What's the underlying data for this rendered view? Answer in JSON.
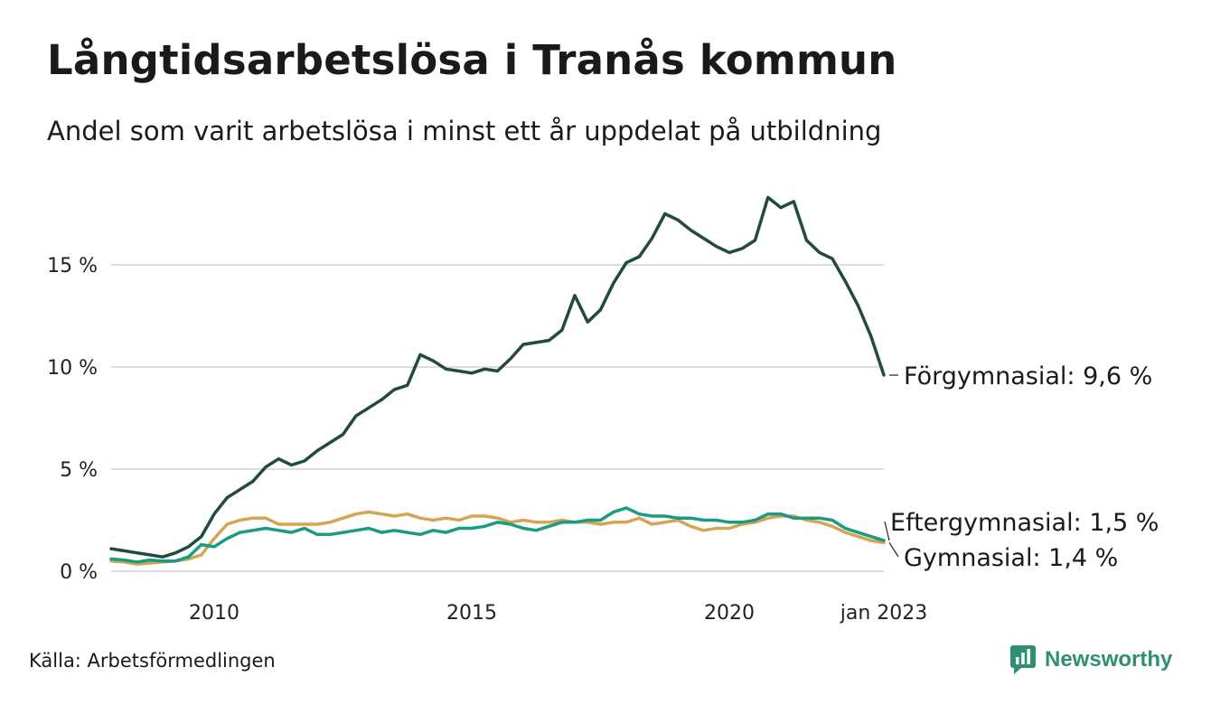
{
  "title": "Långtidsarbetslösa i Tranås kommun",
  "subtitle": "Andel som varit arbetslösa i minst ett år uppdelat på utbildning",
  "source": "Källa: Arbetsförmedlingen",
  "brand": "Newsworthy",
  "colors": {
    "forgymnasial": "#234a40",
    "eftergymnasial": "#1b9a84",
    "gymnasial": "#d4a552",
    "grid": "#dddddd",
    "brand": "#2f8f73"
  },
  "chart_data": {
    "type": "line",
    "title": "Långtidsarbetslösa i Tranås kommun",
    "subtitle": "Andel som varit arbetslösa i minst ett år uppdelat på utbildning",
    "xlabel": "",
    "ylabel": "",
    "x_range": [
      "2008-01",
      "2023-01"
    ],
    "ylim": [
      0,
      18.5
    ],
    "y_ticks": [
      0,
      5,
      10,
      15
    ],
    "y_tick_labels": [
      "0 %",
      "5 %",
      "10 %",
      "15 %"
    ],
    "x_ticks": [
      "2010-01",
      "2015-01",
      "2020-01",
      "2023-01"
    ],
    "x_tick_labels": [
      "2010",
      "2015",
      "2020",
      "jan 2023"
    ],
    "grid": "horizontal",
    "legend": "end-labels",
    "series": [
      {
        "key": "forgymnasial",
        "label": "Förgymnasial: 9,6 %",
        "points": [
          [
            "2008-01",
            1.1
          ],
          [
            "2008-04",
            1.0
          ],
          [
            "2008-07",
            0.9
          ],
          [
            "2008-10",
            0.8
          ],
          [
            "2009-01",
            0.7
          ],
          [
            "2009-04",
            0.9
          ],
          [
            "2009-07",
            1.2
          ],
          [
            "2009-10",
            1.7
          ],
          [
            "2010-01",
            2.8
          ],
          [
            "2010-04",
            3.6
          ],
          [
            "2010-07",
            4.0
          ],
          [
            "2010-10",
            4.4
          ],
          [
            "2011-01",
            5.1
          ],
          [
            "2011-04",
            5.5
          ],
          [
            "2011-07",
            5.2
          ],
          [
            "2011-10",
            5.4
          ],
          [
            "2012-01",
            5.9
          ],
          [
            "2012-04",
            6.3
          ],
          [
            "2012-07",
            6.7
          ],
          [
            "2012-10",
            7.6
          ],
          [
            "2013-01",
            8.0
          ],
          [
            "2013-04",
            8.4
          ],
          [
            "2013-07",
            8.9
          ],
          [
            "2013-10",
            9.1
          ],
          [
            "2014-01",
            10.6
          ],
          [
            "2014-04",
            10.3
          ],
          [
            "2014-07",
            9.9
          ],
          [
            "2014-10",
            9.8
          ],
          [
            "2015-01",
            9.7
          ],
          [
            "2015-04",
            9.9
          ],
          [
            "2015-07",
            9.8
          ],
          [
            "2015-10",
            10.4
          ],
          [
            "2016-01",
            11.1
          ],
          [
            "2016-04",
            11.2
          ],
          [
            "2016-07",
            11.3
          ],
          [
            "2016-10",
            11.8
          ],
          [
            "2017-01",
            13.5
          ],
          [
            "2017-04",
            12.2
          ],
          [
            "2017-07",
            12.8
          ],
          [
            "2017-10",
            14.1
          ],
          [
            "2018-01",
            15.1
          ],
          [
            "2018-04",
            15.4
          ],
          [
            "2018-07",
            16.3
          ],
          [
            "2018-10",
            17.5
          ],
          [
            "2019-01",
            17.2
          ],
          [
            "2019-04",
            16.7
          ],
          [
            "2019-07",
            16.3
          ],
          [
            "2019-10",
            15.9
          ],
          [
            "2020-01",
            15.6
          ],
          [
            "2020-04",
            15.8
          ],
          [
            "2020-07",
            16.2
          ],
          [
            "2020-10",
            18.3
          ],
          [
            "2021-01",
            17.8
          ],
          [
            "2021-04",
            18.1
          ],
          [
            "2021-07",
            16.2
          ],
          [
            "2021-10",
            15.6
          ],
          [
            "2022-01",
            15.3
          ],
          [
            "2022-04",
            14.2
          ],
          [
            "2022-07",
            13.0
          ],
          [
            "2022-10",
            11.5
          ],
          [
            "2023-01",
            9.6
          ]
        ]
      },
      {
        "key": "eftergymnasial",
        "label": "Eftergymnasial: 1,5 %",
        "points": [
          [
            "2008-01",
            0.6
          ],
          [
            "2008-04",
            0.55
          ],
          [
            "2008-07",
            0.45
          ],
          [
            "2008-10",
            0.55
          ],
          [
            "2009-01",
            0.5
          ],
          [
            "2009-04",
            0.5
          ],
          [
            "2009-07",
            0.7
          ],
          [
            "2009-10",
            1.3
          ],
          [
            "2010-01",
            1.2
          ],
          [
            "2010-04",
            1.6
          ],
          [
            "2010-07",
            1.9
          ],
          [
            "2010-10",
            2.0
          ],
          [
            "2011-01",
            2.1
          ],
          [
            "2011-04",
            2.0
          ],
          [
            "2011-07",
            1.9
          ],
          [
            "2011-10",
            2.1
          ],
          [
            "2012-01",
            1.8
          ],
          [
            "2012-04",
            1.8
          ],
          [
            "2012-07",
            1.9
          ],
          [
            "2012-10",
            2.0
          ],
          [
            "2013-01",
            2.1
          ],
          [
            "2013-04",
            1.9
          ],
          [
            "2013-07",
            2.0
          ],
          [
            "2013-10",
            1.9
          ],
          [
            "2014-01",
            1.8
          ],
          [
            "2014-04",
            2.0
          ],
          [
            "2014-07",
            1.9
          ],
          [
            "2014-10",
            2.1
          ],
          [
            "2015-01",
            2.1
          ],
          [
            "2015-04",
            2.2
          ],
          [
            "2015-07",
            2.4
          ],
          [
            "2015-10",
            2.3
          ],
          [
            "2016-01",
            2.1
          ],
          [
            "2016-04",
            2.0
          ],
          [
            "2016-07",
            2.2
          ],
          [
            "2016-10",
            2.4
          ],
          [
            "2017-01",
            2.4
          ],
          [
            "2017-04",
            2.5
          ],
          [
            "2017-07",
            2.5
          ],
          [
            "2017-10",
            2.9
          ],
          [
            "2018-01",
            3.1
          ],
          [
            "2018-04",
            2.8
          ],
          [
            "2018-07",
            2.7
          ],
          [
            "2018-10",
            2.7
          ],
          [
            "2019-01",
            2.6
          ],
          [
            "2019-04",
            2.6
          ],
          [
            "2019-07",
            2.5
          ],
          [
            "2019-10",
            2.5
          ],
          [
            "2020-01",
            2.4
          ],
          [
            "2020-04",
            2.4
          ],
          [
            "2020-07",
            2.5
          ],
          [
            "2020-10",
            2.8
          ],
          [
            "2021-01",
            2.8
          ],
          [
            "2021-04",
            2.6
          ],
          [
            "2021-07",
            2.6
          ],
          [
            "2021-10",
            2.6
          ],
          [
            "2022-01",
            2.5
          ],
          [
            "2022-04",
            2.1
          ],
          [
            "2022-07",
            1.9
          ],
          [
            "2022-10",
            1.7
          ],
          [
            "2023-01",
            1.5
          ]
        ]
      },
      {
        "key": "gymnasial",
        "label": "Gymnasial: 1,4 %",
        "points": [
          [
            "2008-01",
            0.5
          ],
          [
            "2008-04",
            0.45
          ],
          [
            "2008-07",
            0.35
          ],
          [
            "2008-10",
            0.4
          ],
          [
            "2009-01",
            0.45
          ],
          [
            "2009-04",
            0.5
          ],
          [
            "2009-07",
            0.6
          ],
          [
            "2009-10",
            0.8
          ],
          [
            "2010-01",
            1.6
          ],
          [
            "2010-04",
            2.3
          ],
          [
            "2010-07",
            2.5
          ],
          [
            "2010-10",
            2.6
          ],
          [
            "2011-01",
            2.6
          ],
          [
            "2011-04",
            2.3
          ],
          [
            "2011-07",
            2.3
          ],
          [
            "2011-10",
            2.3
          ],
          [
            "2012-01",
            2.3
          ],
          [
            "2012-04",
            2.4
          ],
          [
            "2012-07",
            2.6
          ],
          [
            "2012-10",
            2.8
          ],
          [
            "2013-01",
            2.9
          ],
          [
            "2013-04",
            2.8
          ],
          [
            "2013-07",
            2.7
          ],
          [
            "2013-10",
            2.8
          ],
          [
            "2014-01",
            2.6
          ],
          [
            "2014-04",
            2.5
          ],
          [
            "2014-07",
            2.6
          ],
          [
            "2014-10",
            2.5
          ],
          [
            "2015-01",
            2.7
          ],
          [
            "2015-04",
            2.7
          ],
          [
            "2015-07",
            2.6
          ],
          [
            "2015-10",
            2.4
          ],
          [
            "2016-01",
            2.5
          ],
          [
            "2016-04",
            2.4
          ],
          [
            "2016-07",
            2.4
          ],
          [
            "2016-10",
            2.5
          ],
          [
            "2017-01",
            2.4
          ],
          [
            "2017-04",
            2.4
          ],
          [
            "2017-07",
            2.3
          ],
          [
            "2017-10",
            2.4
          ],
          [
            "2018-01",
            2.4
          ],
          [
            "2018-04",
            2.6
          ],
          [
            "2018-07",
            2.3
          ],
          [
            "2018-10",
            2.4
          ],
          [
            "2019-01",
            2.5
          ],
          [
            "2019-04",
            2.2
          ],
          [
            "2019-07",
            2.0
          ],
          [
            "2019-10",
            2.1
          ],
          [
            "2020-01",
            2.1
          ],
          [
            "2020-04",
            2.3
          ],
          [
            "2020-07",
            2.4
          ],
          [
            "2020-10",
            2.6
          ],
          [
            "2021-01",
            2.7
          ],
          [
            "2021-04",
            2.7
          ],
          [
            "2021-07",
            2.5
          ],
          [
            "2021-10",
            2.4
          ],
          [
            "2022-01",
            2.2
          ],
          [
            "2022-04",
            1.9
          ],
          [
            "2022-07",
            1.7
          ],
          [
            "2022-10",
            1.5
          ],
          [
            "2023-01",
            1.4
          ]
        ]
      }
    ]
  }
}
